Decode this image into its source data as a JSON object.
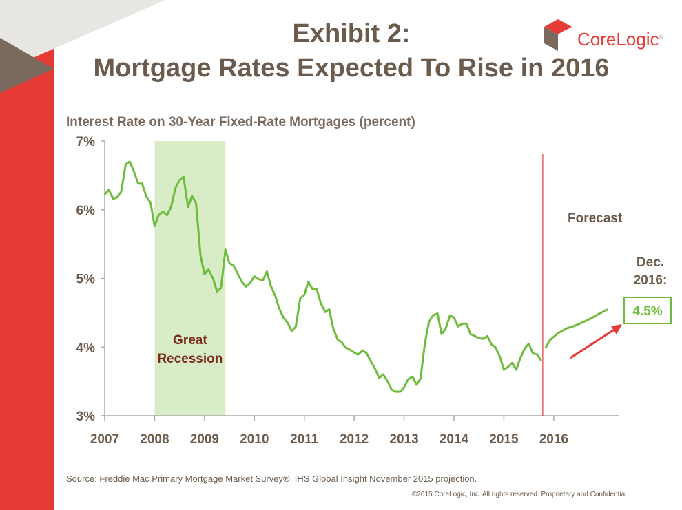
{
  "title_line1": "Exhibit 2:",
  "title_line2": "Mortgage Rates Expected To Rise in 2016",
  "logo": {
    "text": "CoreLogic",
    "mark": "®"
  },
  "source": "Source: Freddie Mac Primary Mortgage Market Survey®, IHS Global Insight November 2015 projection.",
  "copyright": "©2015 CoreLogic, Inc. All rights reserved. Proprietary and Confidential.",
  "colors": {
    "line": "#6fbb3b",
    "recession": "#d9ecc8",
    "forecast_line": "#e63a35",
    "arrow": "#e63a35",
    "accent_red": "#e63a35",
    "text": "#6b5b4d",
    "recession_text": "#7a2a1a"
  },
  "chart_data": {
    "type": "line",
    "title": "",
    "ylabel": "Interest Rate on 30-Year Fixed-Rate Mortgages (percent)",
    "xlabel": "",
    "ylim": [
      3,
      7
    ],
    "xlim": [
      2007,
      2017.3
    ],
    "x_ticks": [
      2007,
      2008,
      2009,
      2010,
      2011,
      2012,
      2013,
      2014,
      2015,
      2016
    ],
    "y_ticks": [
      {
        "value": 3,
        "label": "3%"
      },
      {
        "value": 4,
        "label": "4%"
      },
      {
        "value": 5,
        "label": "5%"
      },
      {
        "value": 6,
        "label": "6%"
      },
      {
        "value": 7,
        "label": "7%"
      }
    ],
    "series": [
      {
        "kind": "actual",
        "points": [
          [
            2007.0,
            6.22
          ],
          [
            2007.08,
            6.29
          ],
          [
            2007.17,
            6.16
          ],
          [
            2007.25,
            6.18
          ],
          [
            2007.33,
            6.26
          ],
          [
            2007.42,
            6.66
          ],
          [
            2007.5,
            6.7
          ],
          [
            2007.58,
            6.57
          ],
          [
            2007.67,
            6.38
          ],
          [
            2007.75,
            6.38
          ],
          [
            2007.83,
            6.2
          ],
          [
            2007.92,
            6.1
          ],
          [
            2008.0,
            5.76
          ],
          [
            2008.08,
            5.92
          ],
          [
            2008.17,
            5.97
          ],
          [
            2008.25,
            5.92
          ],
          [
            2008.33,
            6.04
          ],
          [
            2008.42,
            6.32
          ],
          [
            2008.5,
            6.43
          ],
          [
            2008.58,
            6.48
          ],
          [
            2008.67,
            6.04
          ],
          [
            2008.75,
            6.2
          ],
          [
            2008.83,
            6.1
          ],
          [
            2008.92,
            5.33
          ],
          [
            2009.0,
            5.06
          ],
          [
            2009.08,
            5.13
          ],
          [
            2009.17,
            5.0
          ],
          [
            2009.25,
            4.81
          ],
          [
            2009.33,
            4.86
          ],
          [
            2009.42,
            5.42
          ],
          [
            2009.5,
            5.22
          ],
          [
            2009.58,
            5.19
          ],
          [
            2009.67,
            5.06
          ],
          [
            2009.75,
            4.95
          ],
          [
            2009.83,
            4.88
          ],
          [
            2009.92,
            4.94
          ],
          [
            2010.0,
            5.03
          ],
          [
            2010.08,
            4.99
          ],
          [
            2010.17,
            4.97
          ],
          [
            2010.25,
            5.1
          ],
          [
            2010.33,
            4.89
          ],
          [
            2010.42,
            4.74
          ],
          [
            2010.5,
            4.56
          ],
          [
            2010.58,
            4.43
          ],
          [
            2010.67,
            4.35
          ],
          [
            2010.75,
            4.23
          ],
          [
            2010.83,
            4.3
          ],
          [
            2010.92,
            4.71
          ],
          [
            2011.0,
            4.76
          ],
          [
            2011.08,
            4.95
          ],
          [
            2011.17,
            4.84
          ],
          [
            2011.25,
            4.84
          ],
          [
            2011.33,
            4.64
          ],
          [
            2011.42,
            4.51
          ],
          [
            2011.5,
            4.55
          ],
          [
            2011.58,
            4.27
          ],
          [
            2011.67,
            4.11
          ],
          [
            2011.75,
            4.07
          ],
          [
            2011.83,
            3.99
          ],
          [
            2011.92,
            3.96
          ],
          [
            2012.0,
            3.92
          ],
          [
            2012.08,
            3.89
          ],
          [
            2012.17,
            3.95
          ],
          [
            2012.25,
            3.91
          ],
          [
            2012.33,
            3.8
          ],
          [
            2012.42,
            3.68
          ],
          [
            2012.5,
            3.55
          ],
          [
            2012.58,
            3.6
          ],
          [
            2012.67,
            3.5
          ],
          [
            2012.75,
            3.38
          ],
          [
            2012.83,
            3.35
          ],
          [
            2012.92,
            3.35
          ],
          [
            2013.0,
            3.41
          ],
          [
            2013.08,
            3.53
          ],
          [
            2013.17,
            3.57
          ],
          [
            2013.25,
            3.45
          ],
          [
            2013.33,
            3.54
          ],
          [
            2013.42,
            4.07
          ],
          [
            2013.5,
            4.37
          ],
          [
            2013.58,
            4.46
          ],
          [
            2013.67,
            4.49
          ],
          [
            2013.75,
            4.19
          ],
          [
            2013.83,
            4.26
          ],
          [
            2013.92,
            4.46
          ],
          [
            2014.0,
            4.43
          ],
          [
            2014.08,
            4.3
          ],
          [
            2014.17,
            4.34
          ],
          [
            2014.25,
            4.34
          ],
          [
            2014.33,
            4.19
          ],
          [
            2014.42,
            4.16
          ],
          [
            2014.5,
            4.13
          ],
          [
            2014.58,
            4.12
          ],
          [
            2014.67,
            4.16
          ],
          [
            2014.75,
            4.04
          ],
          [
            2014.83,
            4.0
          ],
          [
            2014.92,
            3.86
          ],
          [
            2015.0,
            3.67
          ],
          [
            2015.08,
            3.71
          ],
          [
            2015.17,
            3.77
          ],
          [
            2015.25,
            3.67
          ],
          [
            2015.33,
            3.84
          ],
          [
            2015.42,
            3.98
          ],
          [
            2015.5,
            4.05
          ],
          [
            2015.58,
            3.91
          ],
          [
            2015.67,
            3.89
          ],
          [
            2015.75,
            3.8
          ]
        ]
      },
      {
        "kind": "forecast",
        "points": [
          [
            2015.83,
            3.98
          ],
          [
            2015.92,
            4.1
          ],
          [
            2016.08,
            4.2
          ],
          [
            2016.25,
            4.27
          ],
          [
            2016.42,
            4.31
          ],
          [
            2016.58,
            4.36
          ],
          [
            2016.75,
            4.42
          ],
          [
            2016.92,
            4.49
          ],
          [
            2017.08,
            4.55
          ]
        ]
      }
    ],
    "recession": {
      "start": 2008.0,
      "end": 2009.42,
      "label_line1": "Great",
      "label_line2": "Recession"
    },
    "forecast_marker": {
      "x": 2015.78,
      "label": "Forecast"
    },
    "callout": {
      "label_line1": "Dec.",
      "label_line2": "2016:",
      "value_label": "4.5%"
    }
  }
}
